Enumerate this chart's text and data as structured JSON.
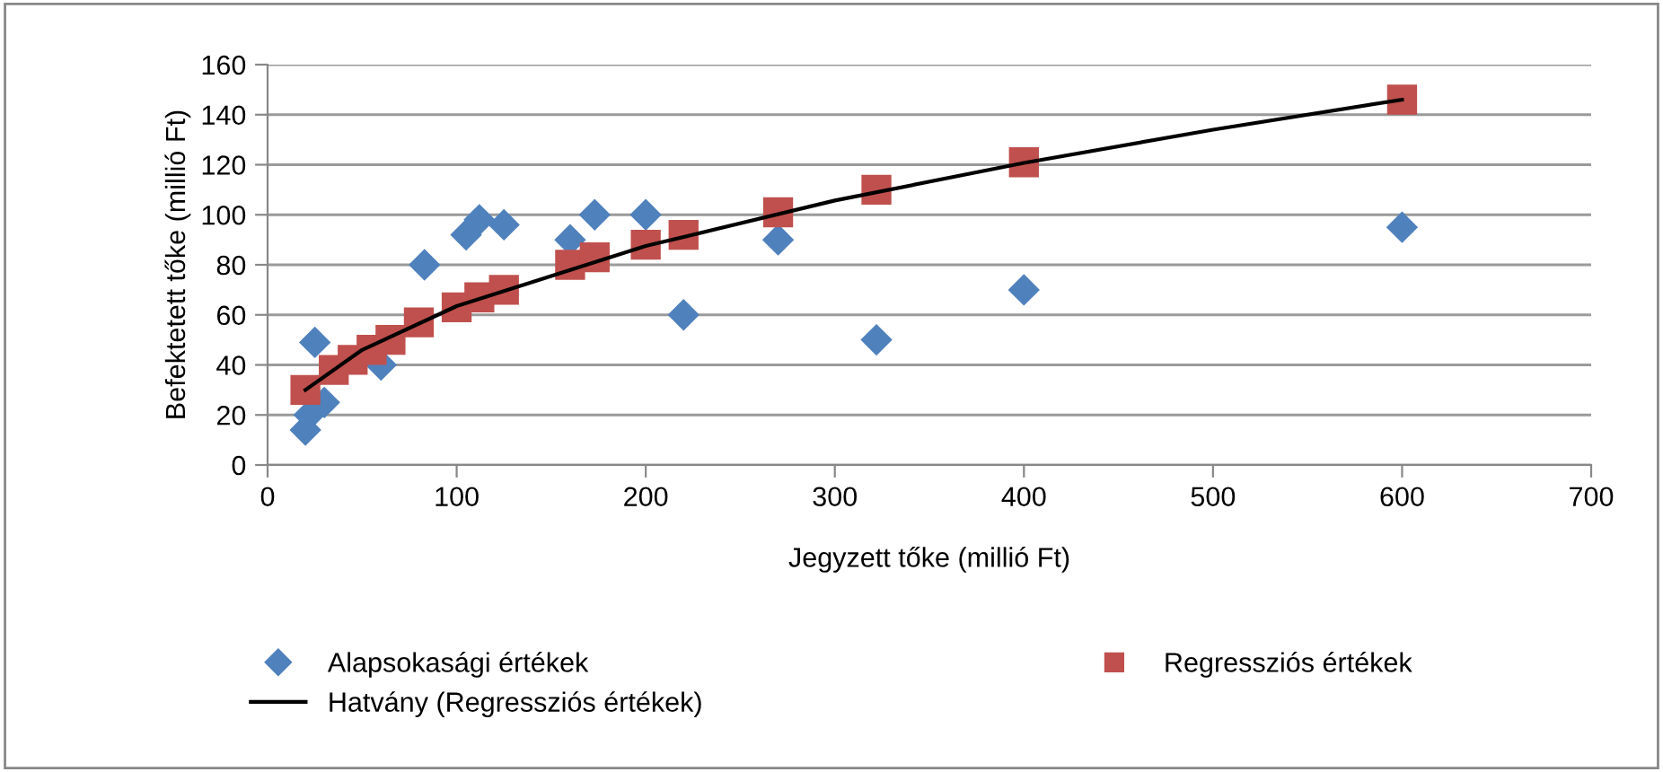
{
  "chart_data": {
    "type": "scatter",
    "xlabel": "Jegyzett tőke (millió Ft)",
    "ylabel": "Befektetett tőke (millió Ft)",
    "xlim": [
      0,
      700
    ],
    "xticks": [
      0,
      100,
      200,
      300,
      400,
      500,
      600,
      700
    ],
    "ylim": [
      0,
      160
    ],
    "yticks": [
      0,
      20,
      40,
      60,
      80,
      100,
      120,
      140,
      160
    ],
    "grid": "y",
    "legend": "bottom",
    "series": [
      {
        "name": "Alapsokasági értékek",
        "color": "#4f81bd",
        "marker": "diamond",
        "x": [
          20,
          22,
          25,
          30,
          60,
          83,
          105,
          112,
          125,
          160,
          173,
          200,
          220,
          270,
          322,
          400,
          600
        ],
        "values": [
          14,
          20,
          49,
          25,
          40,
          80,
          92,
          98,
          96,
          90,
          100,
          100,
          60,
          90,
          50,
          70,
          95
        ]
      },
      {
        "name": "Regressziós értékek",
        "color": "#c0504d",
        "marker": "square",
        "x": [
          20,
          35,
          45,
          55,
          65,
          80,
          100,
          112,
          125,
          160,
          173,
          200,
          220,
          270,
          322,
          400,
          600
        ],
        "values": [
          30,
          38,
          42,
          46,
          50,
          57,
          63,
          67,
          70,
          80,
          83,
          88,
          92,
          101,
          110,
          121,
          146
        ]
      },
      {
        "name": "Hatvány (Regressziós értékek)",
        "type": "line",
        "color": "#000000",
        "marker": "none",
        "line_style": "solid",
        "x": [
          20,
          50,
          100,
          200,
          300,
          400,
          500,
          600
        ],
        "values": [
          30,
          46,
          63.5,
          87.5,
          105.7,
          120.7,
          134,
          146
        ]
      }
    ]
  }
}
